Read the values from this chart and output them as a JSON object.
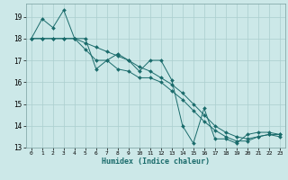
{
  "xlabel": "Humidex (Indice chaleur)",
  "ylabel": "",
  "xlim": [
    -0.5,
    23.5
  ],
  "ylim": [
    13,
    19.6
  ],
  "yticks": [
    13,
    14,
    15,
    16,
    17,
    18,
    19
  ],
  "xticks": [
    0,
    1,
    2,
    3,
    4,
    5,
    6,
    7,
    8,
    9,
    10,
    11,
    12,
    13,
    14,
    15,
    16,
    17,
    18,
    19,
    20,
    21,
    22,
    23
  ],
  "background_color": "#cce8e8",
  "grid_color": "#aacece",
  "line_color": "#1a6b6b",
  "series": [
    [
      18,
      18.9,
      18.5,
      19.3,
      18.0,
      18.0,
      16.6,
      17.0,
      17.3,
      17.0,
      16.5,
      17.0,
      17.0,
      16.1,
      14.0,
      13.2,
      14.8,
      13.4,
      13.4,
      13.2,
      13.6,
      13.7,
      13.7,
      13.6
    ],
    [
      18,
      18.0,
      18.0,
      18.0,
      18.0,
      17.5,
      17.0,
      17.0,
      16.6,
      16.5,
      16.2,
      16.2,
      16.0,
      15.6,
      15.2,
      14.7,
      14.2,
      13.8,
      13.5,
      13.3,
      13.3,
      13.5,
      13.6,
      13.6
    ],
    [
      18,
      18.0,
      18.0,
      18.0,
      18.0,
      17.8,
      17.6,
      17.4,
      17.2,
      17.0,
      16.7,
      16.5,
      16.2,
      15.9,
      15.5,
      15.0,
      14.5,
      14.0,
      13.7,
      13.5,
      13.4,
      13.5,
      13.6,
      13.5
    ]
  ]
}
